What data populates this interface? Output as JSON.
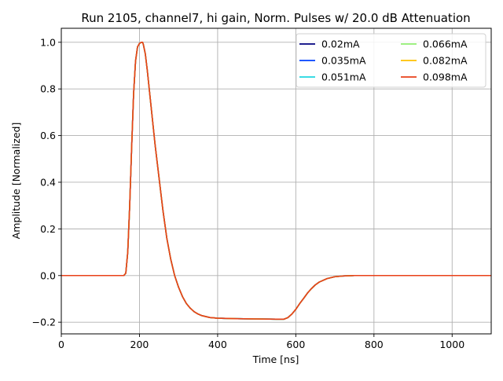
{
  "chart_data": {
    "type": "line",
    "title": "Run 2105, channel7, hi gain, Norm. Pulses w/ 20.0 dB Attenuation",
    "xlabel": "Time [ns]",
    "ylabel": "Amplitude [Normalized]",
    "xlim": [
      0,
      1100
    ],
    "ylim": [
      -0.25,
      1.06
    ],
    "xticks": [
      0,
      200,
      400,
      600,
      800,
      1000
    ],
    "xtick_labels": [
      "0",
      "200",
      "400",
      "600",
      "800",
      "1000"
    ],
    "yticks": [
      -0.2,
      0.0,
      0.2,
      0.4,
      0.6,
      0.8,
      1.0
    ],
    "ytick_labels": [
      "−0.2",
      "0.0",
      "0.2",
      "0.4",
      "0.6",
      "0.8",
      "1.0"
    ],
    "grid": true,
    "legend_position": "top-right",
    "legend_columns": 2,
    "x": [
      0,
      100,
      160,
      165,
      170,
      175,
      180,
      185,
      190,
      195,
      200,
      205,
      208,
      210,
      215,
      220,
      230,
      240,
      250,
      260,
      270,
      280,
      290,
      300,
      310,
      320,
      330,
      340,
      350,
      360,
      380,
      400,
      450,
      500,
      550,
      570,
      580,
      590,
      600,
      610,
      620,
      630,
      640,
      650,
      660,
      680,
      700,
      720,
      750,
      800,
      900,
      1000,
      1100
    ],
    "series": [
      {
        "name": "0.02mA",
        "color": "#00007f",
        "values": [
          0.0,
          0.0,
          0.0,
          0.01,
          0.1,
          0.3,
          0.55,
          0.78,
          0.92,
          0.98,
          0.995,
          1.0,
          1.0,
          0.99,
          0.95,
          0.88,
          0.72,
          0.56,
          0.42,
          0.28,
          0.16,
          0.07,
          0.0,
          -0.05,
          -0.09,
          -0.12,
          -0.14,
          -0.155,
          -0.165,
          -0.172,
          -0.18,
          -0.183,
          -0.185,
          -0.186,
          -0.187,
          -0.187,
          -0.18,
          -0.165,
          -0.145,
          -0.12,
          -0.098,
          -0.075,
          -0.056,
          -0.04,
          -0.028,
          -0.013,
          -0.005,
          -0.002,
          0.0,
          0.0,
          0.0,
          0.0,
          0.0
        ]
      },
      {
        "name": "0.035mA",
        "color": "#0040ff",
        "values": [
          0.0,
          0.0,
          0.0,
          0.01,
          0.1,
          0.3,
          0.55,
          0.78,
          0.92,
          0.98,
          0.995,
          1.0,
          1.0,
          0.99,
          0.95,
          0.88,
          0.72,
          0.56,
          0.42,
          0.28,
          0.16,
          0.07,
          0.0,
          -0.05,
          -0.09,
          -0.12,
          -0.14,
          -0.155,
          -0.165,
          -0.172,
          -0.18,
          -0.183,
          -0.185,
          -0.186,
          -0.187,
          -0.187,
          -0.18,
          -0.165,
          -0.145,
          -0.12,
          -0.098,
          -0.075,
          -0.056,
          -0.04,
          -0.028,
          -0.013,
          -0.005,
          -0.002,
          0.0,
          0.0,
          0.0,
          0.0,
          0.0
        ]
      },
      {
        "name": "0.051mA",
        "color": "#1ed6e0",
        "values": [
          0.0,
          0.0,
          0.0,
          0.01,
          0.1,
          0.3,
          0.55,
          0.78,
          0.92,
          0.98,
          0.995,
          1.0,
          1.0,
          0.99,
          0.95,
          0.88,
          0.72,
          0.56,
          0.42,
          0.28,
          0.16,
          0.07,
          0.0,
          -0.05,
          -0.09,
          -0.12,
          -0.14,
          -0.155,
          -0.165,
          -0.172,
          -0.18,
          -0.183,
          -0.185,
          -0.186,
          -0.187,
          -0.187,
          -0.18,
          -0.165,
          -0.145,
          -0.12,
          -0.098,
          -0.075,
          -0.056,
          -0.04,
          -0.028,
          -0.013,
          -0.005,
          -0.002,
          0.0,
          0.0,
          0.0,
          0.0,
          0.0
        ]
      },
      {
        "name": "0.066mA",
        "color": "#90ee70",
        "values": [
          0.0,
          0.0,
          0.0,
          0.01,
          0.1,
          0.3,
          0.55,
          0.78,
          0.92,
          0.98,
          0.995,
          1.0,
          1.0,
          0.99,
          0.95,
          0.88,
          0.72,
          0.56,
          0.42,
          0.28,
          0.16,
          0.07,
          0.0,
          -0.05,
          -0.09,
          -0.12,
          -0.14,
          -0.155,
          -0.165,
          -0.172,
          -0.18,
          -0.183,
          -0.185,
          -0.186,
          -0.187,
          -0.187,
          -0.18,
          -0.165,
          -0.145,
          -0.12,
          -0.098,
          -0.075,
          -0.056,
          -0.04,
          -0.028,
          -0.013,
          -0.005,
          -0.002,
          0.0,
          0.0,
          0.0,
          0.0,
          0.0
        ]
      },
      {
        "name": "0.082mA",
        "color": "#ffc000",
        "values": [
          0.0,
          0.0,
          0.0,
          0.01,
          0.1,
          0.3,
          0.55,
          0.78,
          0.92,
          0.98,
          0.995,
          1.0,
          1.0,
          0.99,
          0.95,
          0.88,
          0.72,
          0.56,
          0.42,
          0.28,
          0.16,
          0.07,
          0.0,
          -0.05,
          -0.09,
          -0.12,
          -0.14,
          -0.155,
          -0.165,
          -0.172,
          -0.18,
          -0.183,
          -0.185,
          -0.186,
          -0.187,
          -0.187,
          -0.18,
          -0.165,
          -0.145,
          -0.12,
          -0.098,
          -0.075,
          -0.056,
          -0.04,
          -0.028,
          -0.013,
          -0.005,
          -0.002,
          0.0,
          0.0,
          0.0,
          0.0,
          0.0
        ]
      },
      {
        "name": "0.098mA",
        "color": "#e8401a",
        "values": [
          0.0,
          0.0,
          0.0,
          0.01,
          0.1,
          0.3,
          0.55,
          0.78,
          0.92,
          0.98,
          0.995,
          1.0,
          1.0,
          0.99,
          0.95,
          0.88,
          0.72,
          0.56,
          0.42,
          0.28,
          0.16,
          0.07,
          0.0,
          -0.05,
          -0.09,
          -0.12,
          -0.14,
          -0.155,
          -0.165,
          -0.172,
          -0.18,
          -0.183,
          -0.185,
          -0.186,
          -0.187,
          -0.187,
          -0.18,
          -0.165,
          -0.145,
          -0.12,
          -0.098,
          -0.075,
          -0.056,
          -0.04,
          -0.028,
          -0.013,
          -0.005,
          -0.002,
          0.0,
          0.0,
          0.0,
          0.0,
          0.0
        ]
      }
    ]
  }
}
